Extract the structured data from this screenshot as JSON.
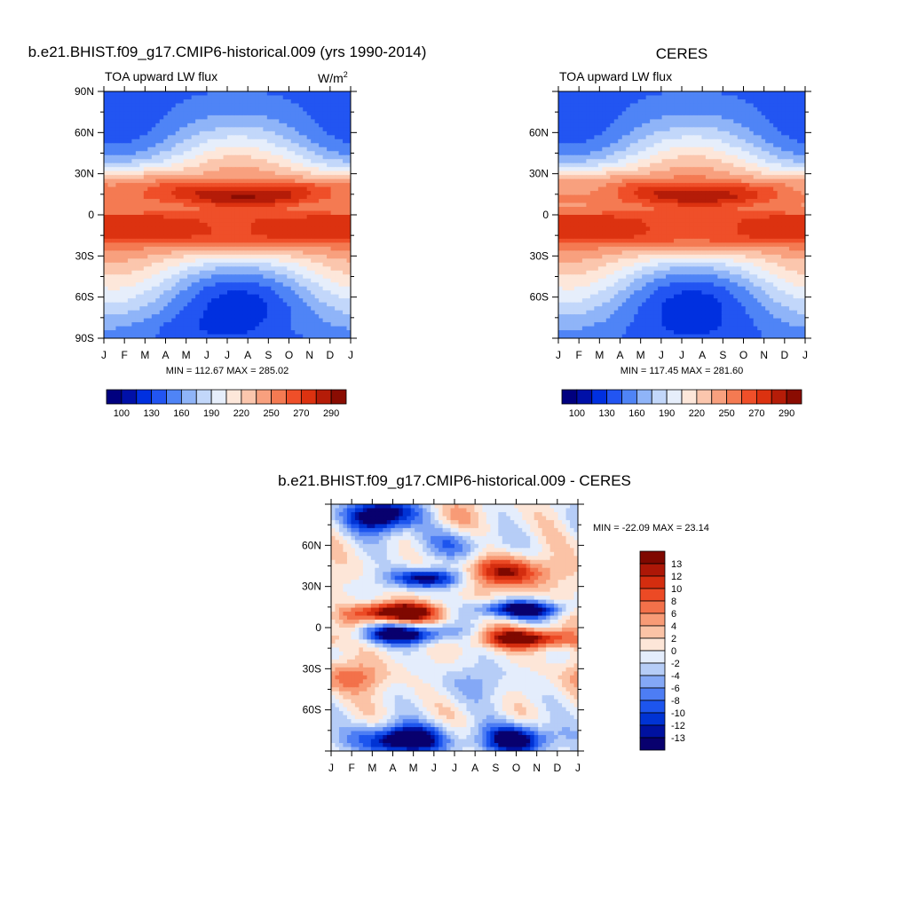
{
  "colors": {
    "scale": [
      "#00007f",
      "#0010a8",
      "#0030e0",
      "#2255f2",
      "#4f84f6",
      "#8fb4f8",
      "#c2d7fa",
      "#e6eefb",
      "#fde7da",
      "#fbc6ad",
      "#f8a07e",
      "#f47a52",
      "#ef4f29",
      "#dc3210",
      "#b51c08",
      "#8a0c02"
    ],
    "diff_scale": [
      "#08006e",
      "#0011a0",
      "#0033d4",
      "#1d55ee",
      "#4d7df4",
      "#84a8f6",
      "#b6cdf7",
      "#e4edfc",
      "#fde6d8",
      "#fbc3a6",
      "#f89b76",
      "#f3714a",
      "#ec4a25",
      "#d42d0f",
      "#ad1707",
      "#7f0800"
    ]
  },
  "chart_data": [
    {
      "type": "heatmap",
      "title": "b.e21.BHIST.f09_g17.CMIP6-historical.009 (yrs 1990-2014)",
      "subtitle": "TOA upward LW flux",
      "units": "W/m",
      "units_sup": "2",
      "stats": "MIN = 112.67 MAX = 285.02",
      "x_tick_labels": [
        "J",
        "F",
        "M",
        "A",
        "M",
        "J",
        "J",
        "A",
        "S",
        "O",
        "N",
        "D",
        "J"
      ],
      "y_tick_labels": [
        "90N",
        "60N",
        "30N",
        "0",
        "30S",
        "60S",
        "90S"
      ],
      "ylim": [
        -90,
        90
      ],
      "min": 112.67,
      "max": 285.02,
      "colorbar_labels": [
        "100",
        "130",
        "160",
        "190",
        "220",
        "250",
        "270",
        "290"
      ],
      "colorbar_levels": [
        100,
        115,
        130,
        145,
        160,
        175,
        190,
        205,
        220,
        235,
        250,
        260,
        270,
        280,
        290
      ]
    },
    {
      "type": "heatmap",
      "title": "CERES",
      "subtitle": "TOA upward LW flux",
      "stats": "MIN = 117.45 MAX = 281.60",
      "x_tick_labels": [
        "J",
        "F",
        "M",
        "A",
        "M",
        "J",
        "J",
        "A",
        "S",
        "O",
        "N",
        "D",
        "J"
      ],
      "y_tick_labels": [
        "60N",
        "30N",
        "0",
        "30S",
        "60S"
      ],
      "min": 117.45,
      "max": 281.6,
      "colorbar_labels": [
        "100",
        "130",
        "160",
        "190",
        "220",
        "250",
        "270",
        "290"
      ]
    },
    {
      "type": "heatmap",
      "title": "b.e21.BHIST.f09_g17.CMIP6-historical.009 - CERES",
      "stats": "MIN = -22.09 MAX =  23.14",
      "x_tick_labels": [
        "J",
        "F",
        "M",
        "A",
        "M",
        "J",
        "J",
        "A",
        "S",
        "O",
        "N",
        "D",
        "J"
      ],
      "y_tick_labels": [
        "60N",
        "30N",
        "0",
        "30S",
        "60S"
      ],
      "min": -22.09,
      "max": 23.14,
      "colorbar_labels": [
        "13",
        "12",
        "10",
        "8",
        "6",
        "4",
        "2",
        "0",
        "-2",
        "-4",
        "-6",
        "-8",
        "-10",
        "-12",
        "-13"
      ]
    }
  ]
}
